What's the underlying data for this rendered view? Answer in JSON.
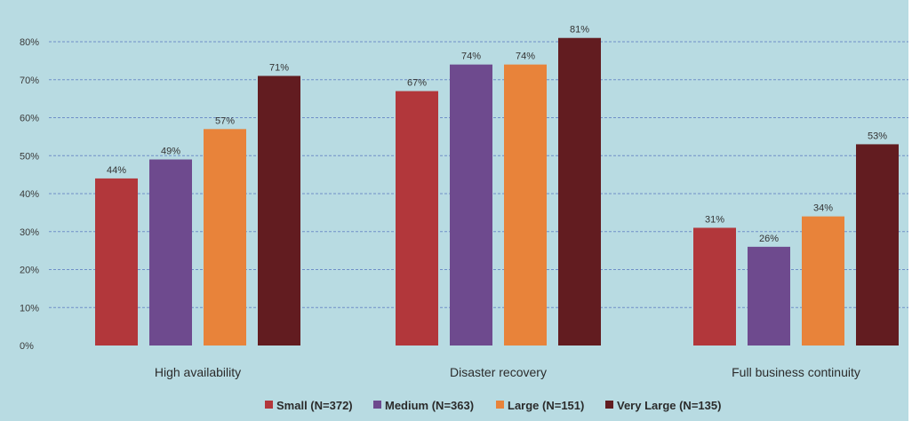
{
  "chart_data": {
    "type": "bar",
    "categories": [
      "High availability",
      "Disaster recovery",
      "Full business continuity"
    ],
    "series": [
      {
        "name": "Small (N=372)",
        "values": [
          44,
          67,
          31
        ],
        "color": "#b2373b"
      },
      {
        "name": "Medium (N=363)",
        "values": [
          49,
          74,
          26
        ],
        "color": "#6e4a8e"
      },
      {
        "name": "Large (N=151)",
        "values": [
          57,
          74,
          34
        ],
        "color": "#e8833a"
      },
      {
        "name": "Very Large (N=135)",
        "values": [
          71,
          81,
          53
        ],
        "color": "#621c20"
      }
    ],
    "data_labels": [
      [
        "44%",
        "67%",
        "31%"
      ],
      [
        "49%",
        "74%",
        "26%"
      ],
      [
        "57%",
        "74%",
        "34%"
      ],
      [
        "71%",
        "81%",
        "53%"
      ]
    ],
    "y_ticks": [
      0,
      10,
      20,
      30,
      40,
      50,
      60,
      70,
      80
    ],
    "y_tick_labels": [
      "0%",
      "10%",
      "20%",
      "30%",
      "40%",
      "50%",
      "60%",
      "70%",
      "80%"
    ],
    "ylim": [
      0,
      80
    ],
    "grid": true,
    "legend_position": "bottom",
    "background_color": "#b8dbe2",
    "grid_color": "#6f8fc8",
    "title": "",
    "xlabel": "",
    "ylabel": ""
  }
}
